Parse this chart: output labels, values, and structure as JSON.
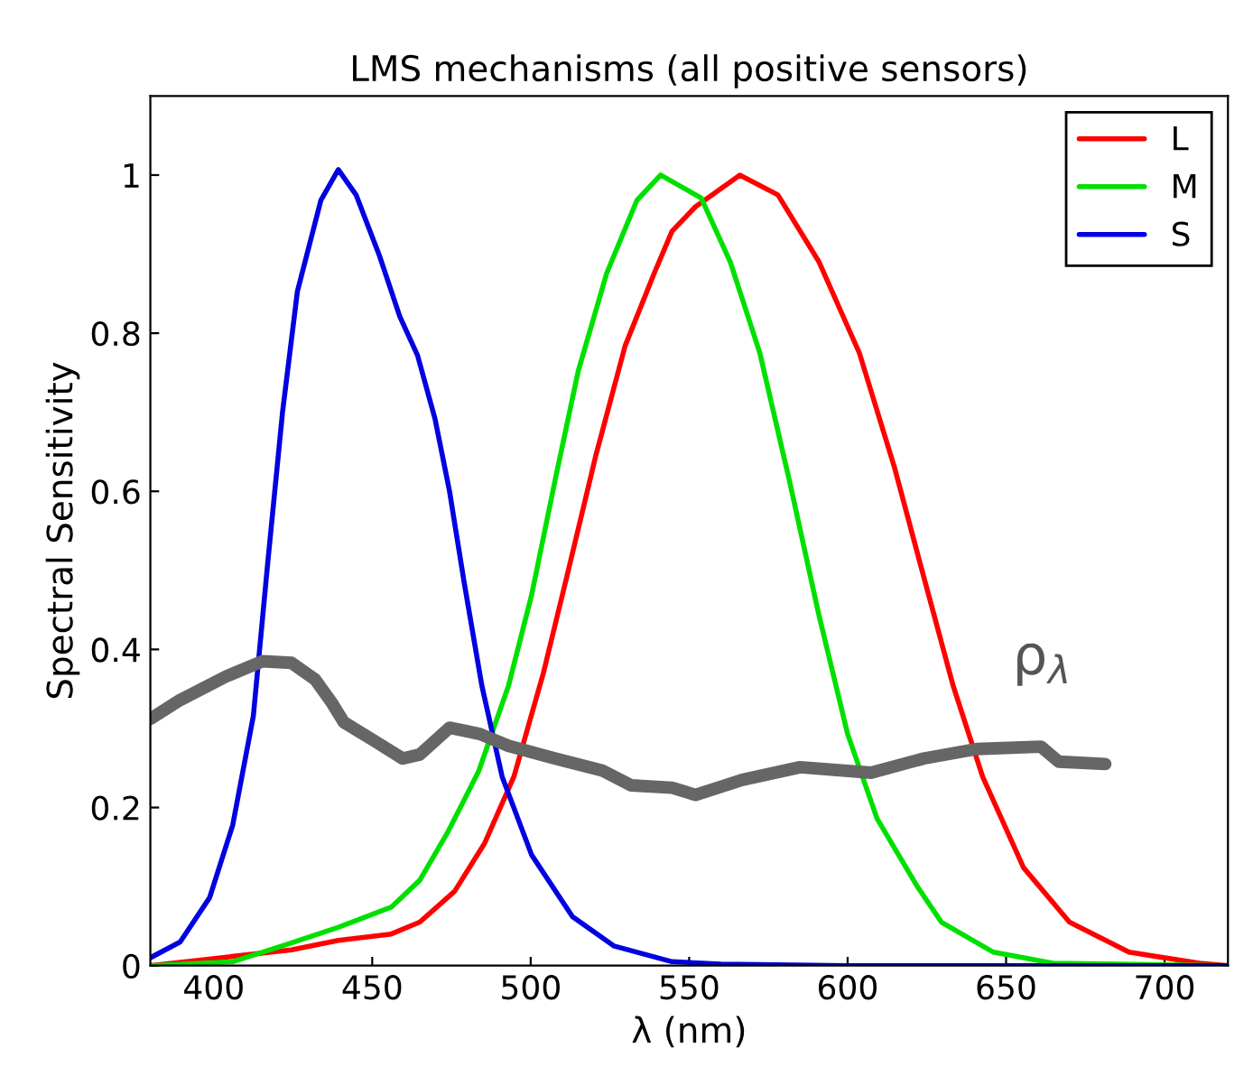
{
  "chart_data": {
    "type": "line",
    "title": "LMS mechanisms (all positive sensors)",
    "xlabel": "λ (nm)",
    "ylabel": "Spectral Sensitivity",
    "xlim": [
      380,
      720
    ],
    "ylim": [
      0,
      1.1
    ],
    "xticks": [
      400,
      450,
      500,
      550,
      600,
      650,
      700
    ],
    "yticks": [
      0,
      0.2,
      0.4,
      0.6,
      0.8,
      1
    ],
    "grid": false,
    "legend": "top right",
    "line_style": "solid",
    "marker": "none",
    "series": [
      {
        "name": "L",
        "color": "#ff0000",
        "x": [
          380,
          424.5,
          439.3,
          456,
          465,
          476,
          485.5,
          494.7,
          504,
          511.4,
          520.6,
          529.8,
          539,
          544.6,
          552,
          566,
          578,
          591,
          603.7,
          614.8,
          624,
          633.3,
          642.6,
          655.5,
          670,
          688.8,
          711,
          720
        ],
        "values": [
          0,
          0.02,
          0.032,
          0.04,
          0.055,
          0.094,
          0.155,
          0.239,
          0.37,
          0.492,
          0.646,
          0.784,
          0.876,
          0.929,
          0.96,
          1.0,
          0.975,
          0.89,
          0.775,
          0.63,
          0.492,
          0.354,
          0.239,
          0.124,
          0.055,
          0.017,
          0.003,
          0
        ]
      },
      {
        "name": "M",
        "color": "#00e000",
        "x": [
          380,
          406,
          424,
          439,
          456,
          465,
          474,
          483.6,
          493,
          500.3,
          507.7,
          515,
          524,
          533.5,
          541,
          553.8,
          563,
          572.3,
          581.6,
          590.8,
          600,
          609.3,
          622,
          629.6,
          646,
          664.7,
          720
        ],
        "values": [
          0,
          0.005,
          0.028,
          0.048,
          0.074,
          0.108,
          0.17,
          0.246,
          0.354,
          0.469,
          0.614,
          0.752,
          0.876,
          0.968,
          1.0,
          0.971,
          0.89,
          0.775,
          0.614,
          0.446,
          0.293,
          0.186,
          0.1,
          0.055,
          0.017,
          0.003,
          0
        ]
      },
      {
        "name": "S",
        "color": "#0000e0",
        "x": [
          380,
          389.4,
          398.7,
          406,
          412.5,
          417,
          421.7,
          426.4,
          433.8,
          439.3,
          444.9,
          452.2,
          458.7,
          464.3,
          469.8,
          474.4,
          479,
          484.6,
          491,
          500.3,
          513.2,
          526.2,
          544.6,
          560,
          600,
          720
        ],
        "values": [
          0.01,
          0.03,
          0.086,
          0.178,
          0.316,
          0.508,
          0.7,
          0.853,
          0.968,
          1.007,
          0.975,
          0.899,
          0.821,
          0.772,
          0.692,
          0.6,
          0.485,
          0.354,
          0.239,
          0.14,
          0.062,
          0.025,
          0.005,
          0.002,
          0,
          0
        ]
      },
      {
        "color": "#666666",
        "x": [
          380,
          389.4,
          404,
          415.3,
          424.5,
          432,
          437.5,
          441,
          450.4,
          459.6,
          465,
          474.4,
          484,
          493,
          507.7,
          522.5,
          531.7,
          544.6,
          552,
          566.8,
          585,
          607.4,
          624,
          640.7,
          661,
          666.6,
          681.3
        ],
        "values": [
          0.312,
          0.336,
          0.366,
          0.385,
          0.383,
          0.362,
          0.331,
          0.308,
          0.285,
          0.262,
          0.267,
          0.301,
          0.293,
          0.278,
          0.262,
          0.247,
          0.228,
          0.225,
          0.216,
          0.235,
          0.251,
          0.244,
          0.262,
          0.274,
          0.277,
          0.258,
          0.255
        ]
      }
    ],
    "annotations": [
      "ρ$_{λ}$"
    ]
  }
}
